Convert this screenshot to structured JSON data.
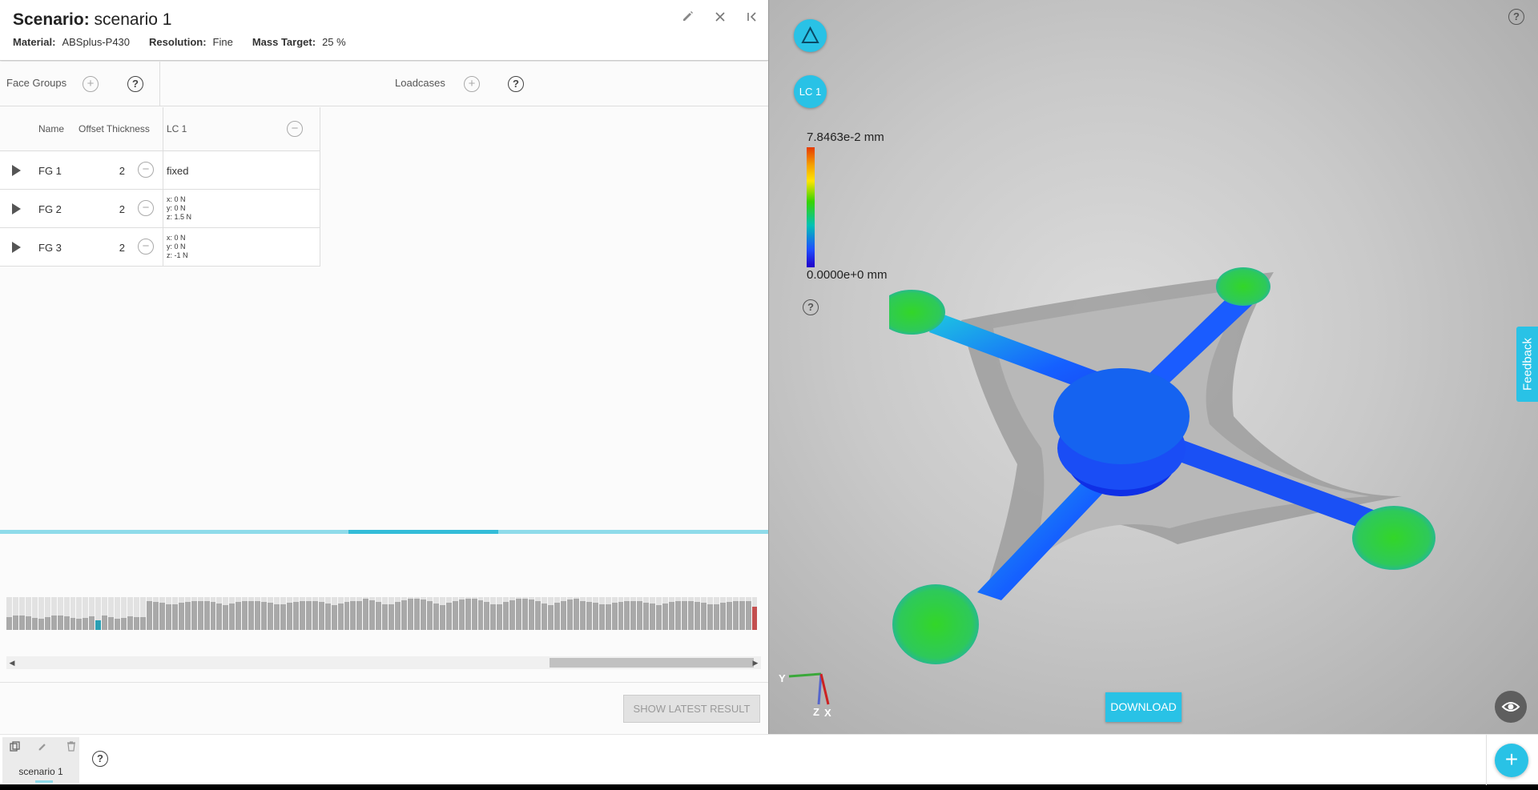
{
  "header": {
    "title_label": "Scenario:",
    "title_value": "scenario 1",
    "material_label": "Material:",
    "material_value": "ABSplus-P430",
    "resolution_label": "Resolution:",
    "resolution_value": "Fine",
    "mass_label": "Mass Target:",
    "mass_value": "25 %",
    "icons": [
      "pencil-icon",
      "close-icon",
      "collapse-left-icon"
    ]
  },
  "groupbar": {
    "face_groups_label": "Face Groups",
    "loadcases_label": "Loadcases"
  },
  "table": {
    "headers": {
      "name": "Name",
      "offset": "Offset Thickness",
      "lc": "LC 1"
    },
    "rows": [
      {
        "name": "FG 1",
        "thickness": "2",
        "lc_text": "fixed",
        "lc_lines": []
      },
      {
        "name": "FG 2",
        "thickness": "2",
        "lc_text": "",
        "lc_lines": [
          "x: 0 N",
          "y: 0 N",
          "z: 1.5 N"
        ]
      },
      {
        "name": "FG 3",
        "thickness": "2",
        "lc_text": "",
        "lc_lines": [
          "x: 0 N",
          "y: 0 N",
          "z: -1 N"
        ]
      }
    ]
  },
  "progress": {
    "fraction_start": 0.454,
    "fraction_end": 0.649
  },
  "show_latest_label": "SHOW LATEST RESULT",
  "viewer": {
    "delta_icon": "delta-icon",
    "lc_button_label": "LC 1",
    "legend_max": "7.8463e-2 mm",
    "legend_min": "0.0000e+0 mm",
    "feedback_label": "Feedback",
    "download_label": "DOWNLOAD",
    "axis_labels": {
      "y": "Y",
      "z": "Z",
      "x": "X"
    },
    "colors": {
      "accent": "#29c2e6"
    }
  },
  "bottom": {
    "tab_label": "scenario 1",
    "tab_icons": [
      "copy-icon",
      "pencil-icon",
      "trash-icon"
    ],
    "add_label": "+"
  }
}
